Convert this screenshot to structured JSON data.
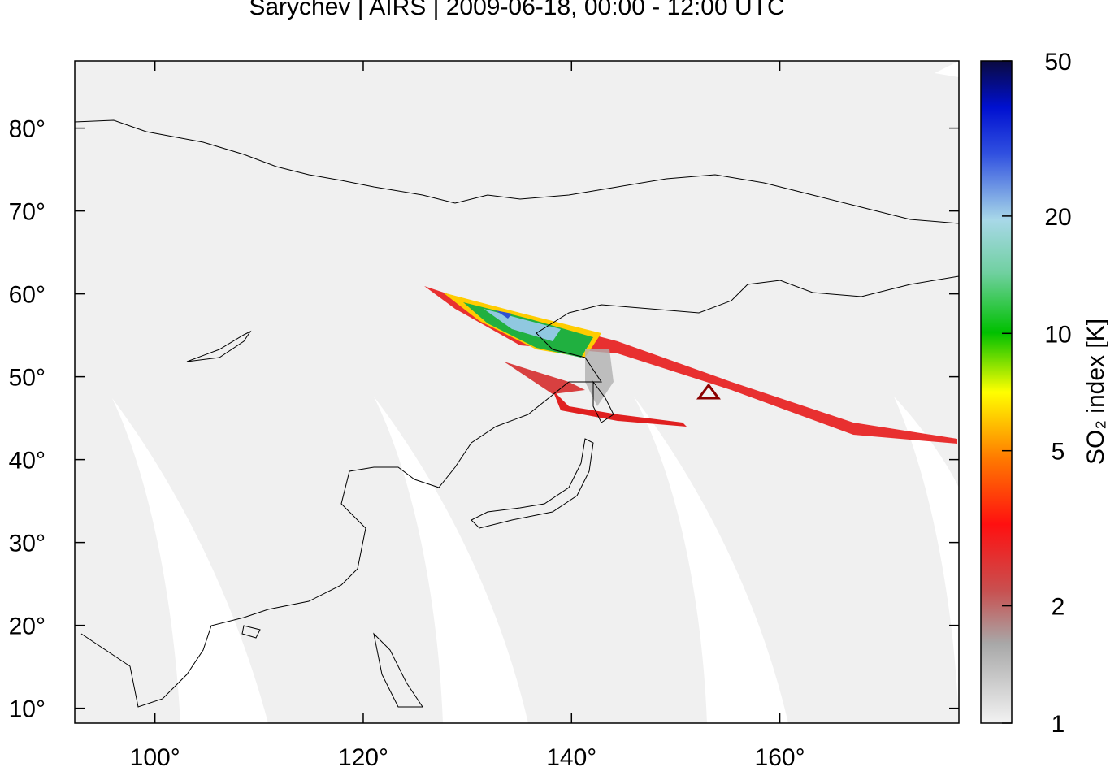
{
  "chart_data": {
    "type": "map",
    "title": "Sarychev | AIRS | 2009-06-18, 00:00 - 12:00 UTC",
    "xlim": [
      92.3,
      177.2
    ],
    "xticks": [
      {
        "value": 100,
        "label": "100°"
      },
      {
        "value": 120,
        "label": "120°"
      },
      {
        "value": 140,
        "label": "140°"
      },
      {
        "value": 160,
        "label": "160°"
      }
    ],
    "ylim": [
      8.2,
      88.1
    ],
    "yticks": [
      {
        "value": 10,
        "label": "10°"
      },
      {
        "value": 20,
        "label": "20°"
      },
      {
        "value": 30,
        "label": "30°"
      },
      {
        "value": 40,
        "label": "40°"
      },
      {
        "value": 50,
        "label": "50°"
      },
      {
        "value": 60,
        "label": "60°"
      },
      {
        "value": 70,
        "label": "70°"
      },
      {
        "value": 80,
        "label": "80°"
      }
    ],
    "colorbar": {
      "label": "SO₂ index [K]",
      "scale": "log",
      "lim": [
        1,
        50
      ],
      "ticks": [
        1,
        2,
        5,
        10,
        20,
        50
      ]
    }
  }
}
